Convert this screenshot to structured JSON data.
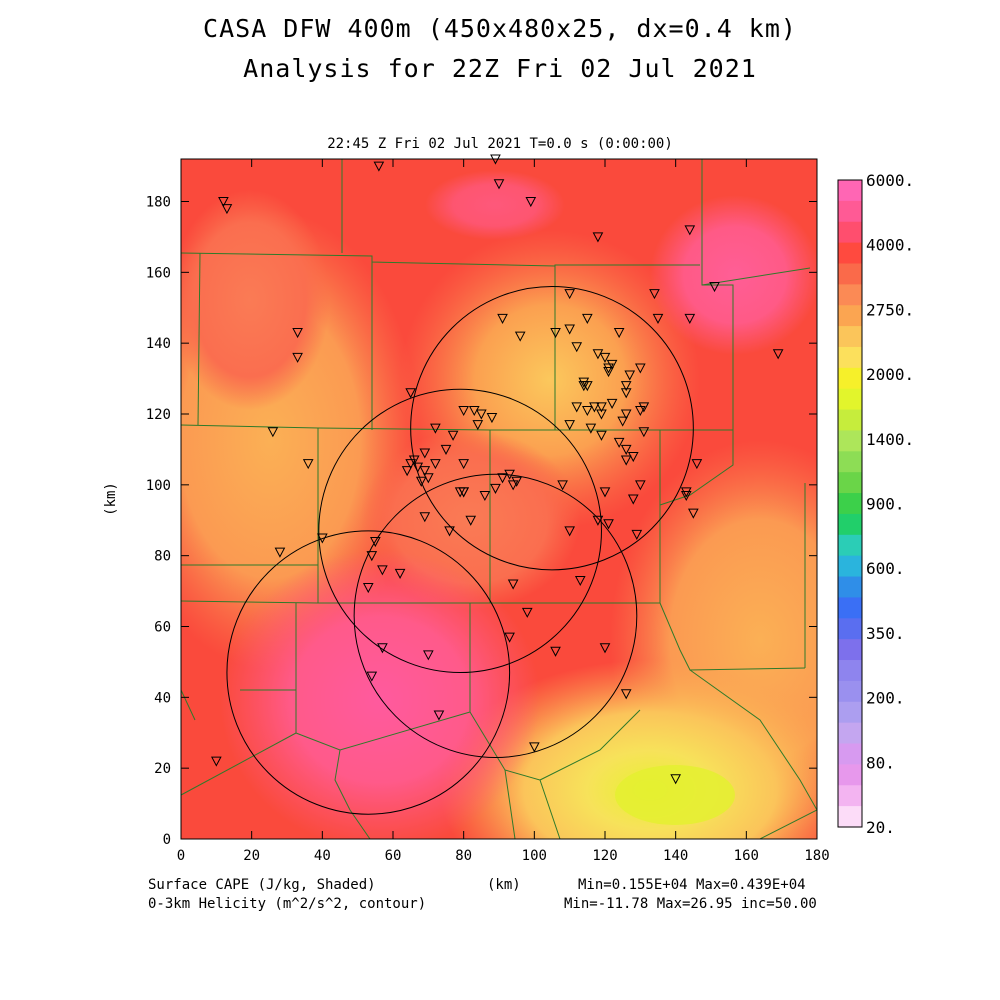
{
  "title_line1": "CASA DFW 400m (450x480x25, dx=0.4 km)",
  "title_line2": "Analysis for 22Z Fri 02 Jul 2021",
  "subtitle": "22:45 Z Fri 02 Jul 2021   T=0.0 s (0:00:00)",
  "footer": {
    "left1": "Surface CAPE (J/kg, Shaded)",
    "left2": "0-3km Helicity (m^2/s^2, contour)",
    "center": "(km)",
    "right1": "Min=0.155E+04 Max=0.439E+04",
    "right2": "Min=-11.78 Max=26.95 inc=50.00"
  },
  "chart_data": {
    "type": "heatmap",
    "title": "CASA DFW 400m (450x480x25, dx=0.4 km)",
    "subtitle": "Analysis for 22Z Fri 02 Jul 2021",
    "xlabel": "(km)",
    "ylabel": "(km)",
    "xlim": [
      0,
      180
    ],
    "ylim": [
      0,
      192
    ],
    "x_ticks": [
      0,
      20,
      40,
      60,
      80,
      100,
      120,
      140,
      160,
      180
    ],
    "y_ticks": [
      0,
      20,
      40,
      60,
      80,
      100,
      120,
      140,
      160,
      180
    ],
    "field": "Surface CAPE (J/kg)",
    "field_min": 1550,
    "field_max": 4390,
    "colorbar": {
      "labels": [
        "6000.",
        "4000.",
        "2750.",
        "2000.",
        "1400.",
        "900.",
        "600.",
        "350.",
        "200.",
        "80.",
        "20."
      ],
      "colors": [
        "#ff66b4",
        "#ff5a95",
        "#ff4e6e",
        "#ff4a3f",
        "#fa6a4a",
        "#fb8a55",
        "#fba551",
        "#fbc55a",
        "#fce05c",
        "#f6f02a",
        "#e2f52c",
        "#c6ed3c",
        "#ade65a",
        "#8ddd55",
        "#6ad548",
        "#3cd04a",
        "#21cf6a",
        "#2bcdb6",
        "#2ab4dd",
        "#2f8ee8",
        "#3a6ff5",
        "#5a6ef0",
        "#7d70ec",
        "#8e84ee",
        "#9a90ef",
        "#ac9ef0",
        "#c4a6f0",
        "#d79af0",
        "#e798ec",
        "#f3b4f1",
        "#fcdcf8"
      ]
    },
    "radar_rings": [
      {
        "center": [
          79,
          87
        ],
        "radius": 40
      },
      {
        "center": [
          105,
          116
        ],
        "radius": 40
      },
      {
        "center": [
          53,
          47
        ],
        "radius": 40
      },
      {
        "center": [
          89,
          63
        ],
        "radius": 40
      }
    ],
    "stations": [
      [
        12,
        180
      ],
      [
        13,
        178
      ],
      [
        56,
        190
      ],
      [
        89,
        192
      ],
      [
        90,
        185
      ],
      [
        99,
        180
      ],
      [
        118,
        170
      ],
      [
        144,
        172
      ],
      [
        151,
        156
      ],
      [
        33,
        143
      ],
      [
        33,
        136
      ],
      [
        169,
        137
      ],
      [
        110,
        154
      ],
      [
        115,
        147
      ],
      [
        124,
        143
      ],
      [
        134,
        154
      ],
      [
        135,
        147
      ],
      [
        144,
        147
      ],
      [
        91,
        147
      ],
      [
        96,
        142
      ],
      [
        106,
        143
      ],
      [
        110,
        144
      ],
      [
        112,
        139
      ],
      [
        118,
        137
      ],
      [
        120,
        136
      ],
      [
        121,
        132
      ],
      [
        121,
        133
      ],
      [
        122,
        134
      ],
      [
        126,
        126
      ],
      [
        127,
        131
      ],
      [
        126,
        128
      ],
      [
        125,
        118
      ],
      [
        130,
        133
      ],
      [
        114,
        129
      ],
      [
        114,
        128
      ],
      [
        115,
        128
      ],
      [
        112,
        122
      ],
      [
        115,
        121
      ],
      [
        117,
        122
      ],
      [
        119,
        122
      ],
      [
        119,
        120
      ],
      [
        116,
        116
      ],
      [
        122,
        123
      ],
      [
        126,
        120
      ],
      [
        130,
        121
      ],
      [
        131,
        122
      ],
      [
        131,
        115
      ],
      [
        124,
        112
      ],
      [
        119,
        114
      ],
      [
        110,
        117
      ],
      [
        65,
        126
      ],
      [
        72,
        116
      ],
      [
        80,
        121
      ],
      [
        83,
        121
      ],
      [
        84,
        117
      ],
      [
        85,
        120
      ],
      [
        88,
        119
      ],
      [
        77,
        114
      ],
      [
        75,
        110
      ],
      [
        69,
        109
      ],
      [
        66,
        107
      ],
      [
        67,
        105
      ],
      [
        65,
        106
      ],
      [
        69,
        104
      ],
      [
        68,
        101
      ],
      [
        72,
        106
      ],
      [
        70,
        102
      ],
      [
        64,
        104
      ],
      [
        36,
        106
      ],
      [
        26,
        115
      ],
      [
        28,
        81
      ],
      [
        40,
        85
      ],
      [
        54,
        80
      ],
      [
        55,
        84
      ],
      [
        57,
        76
      ],
      [
        62,
        75
      ],
      [
        69,
        91
      ],
      [
        76,
        87
      ],
      [
        80,
        106
      ],
      [
        79,
        98
      ],
      [
        80,
        98
      ],
      [
        86,
        97
      ],
      [
        89,
        99
      ],
      [
        91,
        102
      ],
      [
        95,
        101
      ],
      [
        93,
        103
      ],
      [
        94,
        100
      ],
      [
        108,
        100
      ],
      [
        120,
        98
      ],
      [
        118,
        90
      ],
      [
        121,
        89
      ],
      [
        126,
        107
      ],
      [
        128,
        108
      ],
      [
        126,
        110
      ],
      [
        128,
        96
      ],
      [
        130,
        100
      ],
      [
        129,
        86
      ],
      [
        143,
        98
      ],
      [
        143,
        97
      ],
      [
        145,
        92
      ],
      [
        146,
        106
      ],
      [
        80,
        98
      ],
      [
        82,
        90
      ],
      [
        94,
        72
      ],
      [
        98,
        64
      ],
      [
        93,
        57
      ],
      [
        106,
        53
      ],
      [
        113,
        73
      ],
      [
        120,
        54
      ],
      [
        126,
        41
      ],
      [
        140,
        17
      ],
      [
        10,
        22
      ],
      [
        53,
        71
      ],
      [
        57,
        54
      ],
      [
        54,
        46
      ],
      [
        70,
        52
      ],
      [
        73,
        35
      ],
      [
        100,
        26
      ],
      [
        110,
        87
      ]
    ]
  }
}
